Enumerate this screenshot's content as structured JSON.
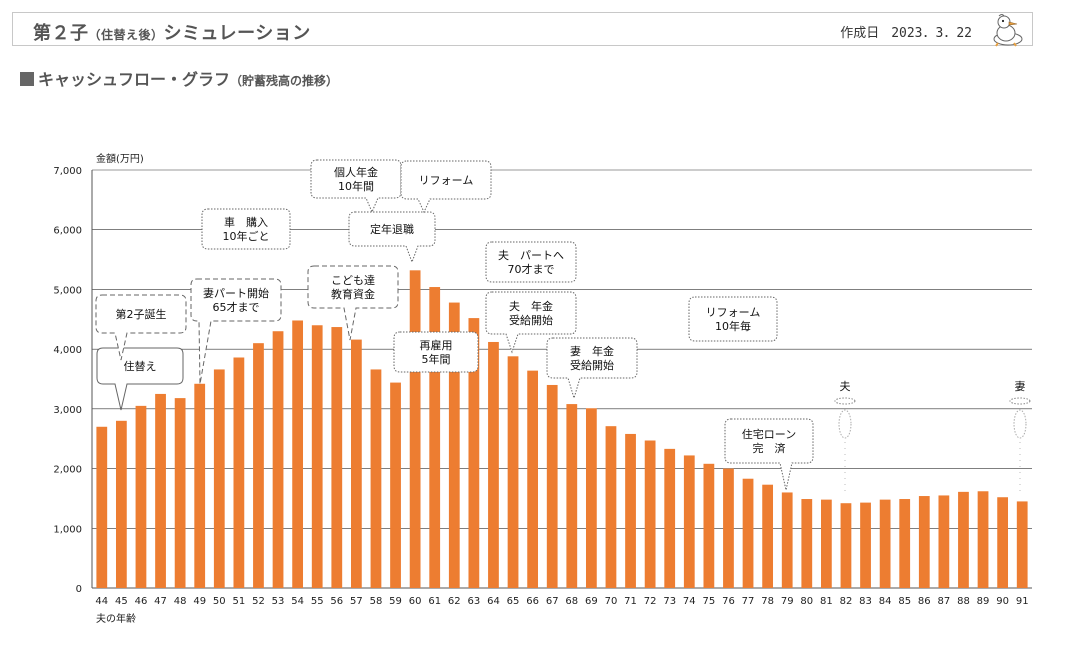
{
  "header": {
    "title_main_a": "第２子",
    "title_main_small": "（住替え後）",
    "title_main_b": "シミュレーション",
    "created_label": "作成日",
    "created_date": "2023．3．22"
  },
  "section": {
    "title": "キャッシュフロー・グラフ",
    "title_small": "（貯蓄残高の推移）"
  },
  "chart_data": {
    "type": "bar",
    "ylabel": "金額(万円)",
    "xlabel": "夫の年齢",
    "ylim": [
      0,
      7000
    ],
    "yticks": [
      "0",
      "1,000",
      "2,000",
      "3,000",
      "4,000",
      "5,000",
      "6,000",
      "7,000"
    ],
    "bar_color": "#ED7D31",
    "categories": [
      "44",
      "45",
      "46",
      "47",
      "48",
      "49",
      "50",
      "51",
      "52",
      "53",
      "54",
      "55",
      "56",
      "57",
      "58",
      "59",
      "60",
      "61",
      "62",
      "63",
      "64",
      "65",
      "66",
      "67",
      "68",
      "69",
      "70",
      "71",
      "72",
      "73",
      "74",
      "75",
      "76",
      "77",
      "78",
      "79",
      "80",
      "81",
      "82",
      "83",
      "84",
      "85",
      "86",
      "87",
      "88",
      "89",
      "90",
      "91"
    ],
    "values": [
      2700,
      2800,
      3050,
      3250,
      3180,
      3420,
      3660,
      3860,
      4100,
      4300,
      4480,
      4400,
      4370,
      4160,
      3660,
      3440,
      5320,
      5040,
      4780,
      4520,
      4120,
      3880,
      3640,
      3400,
      3080,
      3010,
      2710,
      2580,
      2470,
      2330,
      2220,
      2080,
      2000,
      1830,
      1730,
      1600,
      1490,
      1480,
      1420,
      1430,
      1480,
      1490,
      1540,
      1550,
      1610,
      1620,
      1520,
      1450
    ],
    "annotations": [
      {
        "lines": [
          "住替え"
        ],
        "age": "45",
        "style": "solid"
      },
      {
        "lines": [
          "第2子誕生"
        ],
        "age": "45",
        "style": "dashed"
      },
      {
        "lines": [
          "妻パート開始",
          "65才まで"
        ],
        "age": "49",
        "style": "dashed"
      },
      {
        "lines": [
          "車　購入",
          "10年ごと"
        ],
        "age": "51",
        "style": "dotted"
      },
      {
        "lines": [
          "こども達",
          "教育資金"
        ],
        "age": "55",
        "style": "dashed"
      },
      {
        "lines": [
          "個人年金",
          "10年間"
        ],
        "age": "58",
        "style": "dotted"
      },
      {
        "lines": [
          "定年退職"
        ],
        "age": "60",
        "style": "dotted"
      },
      {
        "lines": [
          "リフォーム"
        ],
        "age": "61",
        "style": "dotted"
      },
      {
        "lines": [
          "再雇用",
          "5年間"
        ],
        "age": "60",
        "style": "dotted"
      },
      {
        "lines": [
          "夫　パートへ",
          "70才まで"
        ],
        "age": "65",
        "style": "dotted"
      },
      {
        "lines": [
          "夫　年金",
          "受給開始"
        ],
        "age": "65",
        "style": "dotted"
      },
      {
        "lines": [
          "妻　年金",
          "受給開始"
        ],
        "age": "68",
        "style": "dotted"
      },
      {
        "lines": [
          "リフォーム",
          "10年毎"
        ],
        "age": "73",
        "style": "dotted"
      },
      {
        "lines": [
          "住宅ローン",
          "完　済"
        ],
        "age": "79",
        "style": "dotted"
      },
      {
        "lines": [
          "夫"
        ],
        "age": "82",
        "style": "ghost"
      },
      {
        "lines": [
          "妻"
        ],
        "age": "91",
        "style": "ghost"
      }
    ]
  }
}
